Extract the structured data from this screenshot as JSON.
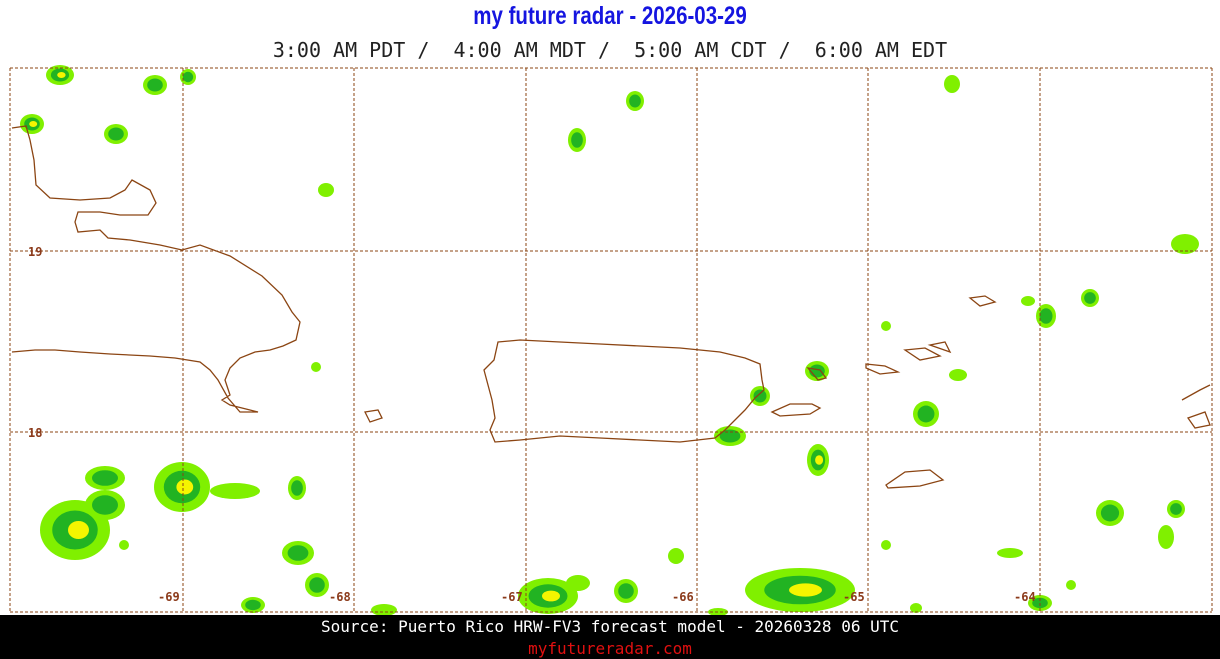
{
  "header": {
    "title": "my future radar - 2026-03-29",
    "times": "3:00 AM PDT /  4:00 AM MDT /  5:00 AM CDT /  6:00 AM EDT"
  },
  "map": {
    "lat_labels": [
      "19",
      "18"
    ],
    "lon_labels": [
      "-69",
      "-68",
      "-67",
      "-66",
      "-65",
      "-64"
    ]
  },
  "footer": {
    "source": "Source: Puerto Rico HRW-FV3 forecast model - 20260328 06 UTC",
    "url": "myfutureradar.com"
  }
}
